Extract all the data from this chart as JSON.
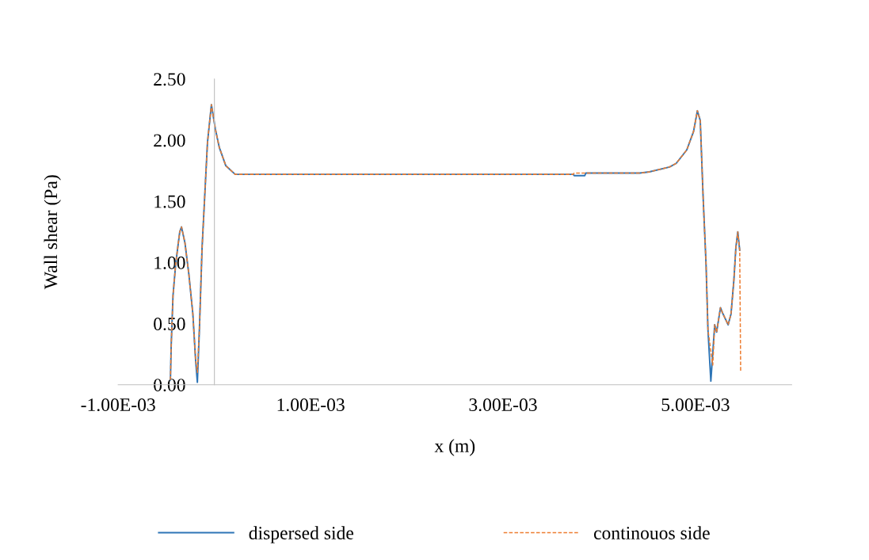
{
  "chart_data": {
    "type": "line",
    "xlabel": "x (m)",
    "ylabel": "Wall shear (Pa)",
    "xlim": [
      -0.001,
      0.006
    ],
    "xticks": [
      {
        "value": -0.001,
        "label": "-1.00E-03"
      },
      {
        "value": 0.001,
        "label": "1.00E-03"
      },
      {
        "value": 0.003,
        "label": "3.00E-03"
      },
      {
        "value": 0.005,
        "label": "5.00E-03"
      }
    ],
    "ylim": [
      0,
      2.5
    ],
    "yticks": [
      {
        "value": 0,
        "label": "0.00"
      },
      {
        "value": 0.5,
        "label": "0.50"
      },
      {
        "value": 1,
        "label": "1.00"
      },
      {
        "value": 1.5,
        "label": "1.50"
      },
      {
        "value": 2,
        "label": "2.00"
      },
      {
        "value": 2.5,
        "label": "2.50"
      }
    ],
    "grid": false,
    "legend": "bottom",
    "series": [
      {
        "name": "dispersed side",
        "color": "#2e75b6",
        "line_style": "solid",
        "x": [
          -0.000457,
          -0.000449,
          -0.00043,
          -0.000402,
          -0.00036,
          -0.000342,
          -0.000306,
          -0.000265,
          -0.000224,
          -0.000196,
          -0.000177,
          -0.000155,
          -0.000128,
          -0.0001,
          -7.2e-05,
          -3.1e-05,
          1e-05,
          5.1e-05,
          0.000119,
          0.000216,
          0.00373,
          0.00374,
          0.00385,
          0.00386,
          0.00442,
          0.00452,
          0.00473,
          0.0048,
          0.00491,
          0.00498,
          0.00502,
          0.00505,
          0.00508,
          0.00511,
          0.00513,
          0.00516,
          0.0052,
          0.00522,
          0.00526,
          0.00528,
          0.00534,
          0.00537,
          0.0054,
          0.00542,
          0.00544,
          0.00546
        ],
        "values": [
          0.04,
          0.32,
          0.73,
          0.99,
          1.25,
          1.29,
          1.16,
          0.9,
          0.58,
          0.21,
          0.02,
          0.47,
          1.12,
          1.55,
          1.98,
          2.29,
          2.09,
          1.94,
          1.79,
          1.72,
          1.72,
          1.71,
          1.71,
          1.73,
          1.73,
          1.74,
          1.78,
          1.81,
          1.92,
          2.07,
          2.24,
          2.16,
          1.53,
          0.99,
          0.45,
          0.03,
          0.49,
          0.43,
          0.63,
          0.59,
          0.49,
          0.58,
          0.86,
          1.12,
          1.25,
          1.1
        ]
      },
      {
        "name": "continouos side",
        "color": "#ed7d31",
        "line_style": "dashed",
        "x": [
          -0.000457,
          -0.000449,
          -0.00043,
          -0.000402,
          -0.00036,
          -0.000342,
          -0.000306,
          -0.000265,
          -0.000224,
          -0.000196,
          -0.000177,
          -0.000155,
          -0.000128,
          -0.0001,
          -7.2e-05,
          -3.1e-05,
          1e-05,
          5.1e-05,
          0.000119,
          0.000216,
          0.00373,
          0.00374,
          0.00442,
          0.00452,
          0.00473,
          0.0048,
          0.00491,
          0.00498,
          0.00502,
          0.00505,
          0.00508,
          0.00511,
          0.00513,
          0.00518,
          0.0052,
          0.00522,
          0.00526,
          0.00528,
          0.00534,
          0.00537,
          0.0054,
          0.00542,
          0.00544,
          0.00546,
          0.00547
        ],
        "values": [
          0.04,
          0.32,
          0.73,
          0.99,
          1.25,
          1.29,
          1.16,
          0.9,
          0.58,
          0.21,
          0.1,
          0.47,
          1.12,
          1.55,
          1.98,
          2.29,
          2.09,
          1.94,
          1.79,
          1.72,
          1.72,
          1.73,
          1.73,
          1.74,
          1.78,
          1.81,
          1.92,
          2.07,
          2.24,
          2.16,
          1.53,
          0.99,
          0.45,
          0.16,
          0.49,
          0.43,
          0.63,
          0.59,
          0.49,
          0.58,
          0.86,
          1.12,
          1.25,
          1.1,
          0.1
        ]
      }
    ]
  }
}
